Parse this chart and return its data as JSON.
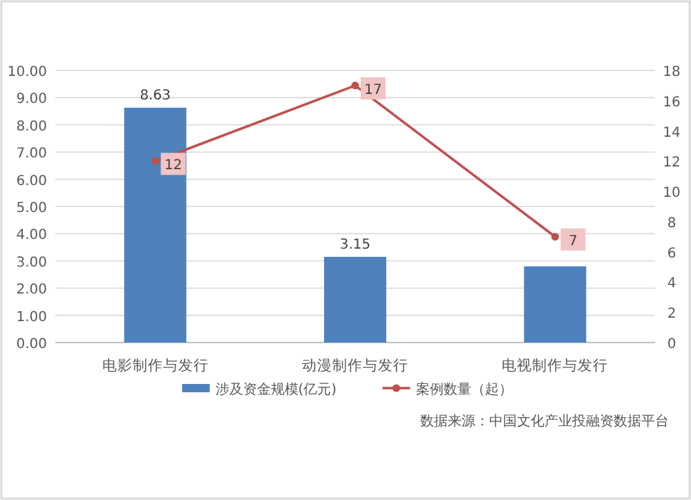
{
  "chart_data": {
    "type": "bar",
    "categories": [
      "电影制作与发行",
      "动漫制作与发行",
      "电视制作与发行"
    ],
    "series": [
      {
        "name": "涉及资金规模(亿元)",
        "color": "#4f81bd",
        "values": [
          8.63,
          3.15,
          2.8
        ],
        "value_labels": [
          "8.63",
          "3.15",
          null
        ]
      },
      {
        "name": "案例数量（起）",
        "type": "line",
        "axis": "y2",
        "color": "#c0504d",
        "marker": "circle",
        "values": [
          12,
          17,
          7
        ],
        "value_labels": [
          "12",
          "17",
          "7"
        ]
      }
    ],
    "ylim": [
      0,
      10
    ],
    "yticks": [
      {
        "value": 0,
        "label": "0.00"
      },
      {
        "value": 1,
        "label": "1.00"
      },
      {
        "value": 2,
        "label": "2.00"
      },
      {
        "value": 3,
        "label": "3.00"
      },
      {
        "value": 4,
        "label": "4.00"
      },
      {
        "value": 5,
        "label": "5.00"
      },
      {
        "value": 6,
        "label": "6.00"
      },
      {
        "value": 7,
        "label": "7.00"
      },
      {
        "value": 8,
        "label": "8.00"
      },
      {
        "value": 9,
        "label": "9.00"
      },
      {
        "value": 10,
        "label": "10.00"
      }
    ],
    "y2lim": [
      0,
      18
    ],
    "y2ticks": [
      0,
      2,
      4,
      6,
      8,
      10,
      12,
      14,
      16,
      18
    ],
    "grid": "y",
    "legend": "bottom",
    "annotations": [
      "数据来源：中国文化产业投融资数据平台"
    ]
  }
}
